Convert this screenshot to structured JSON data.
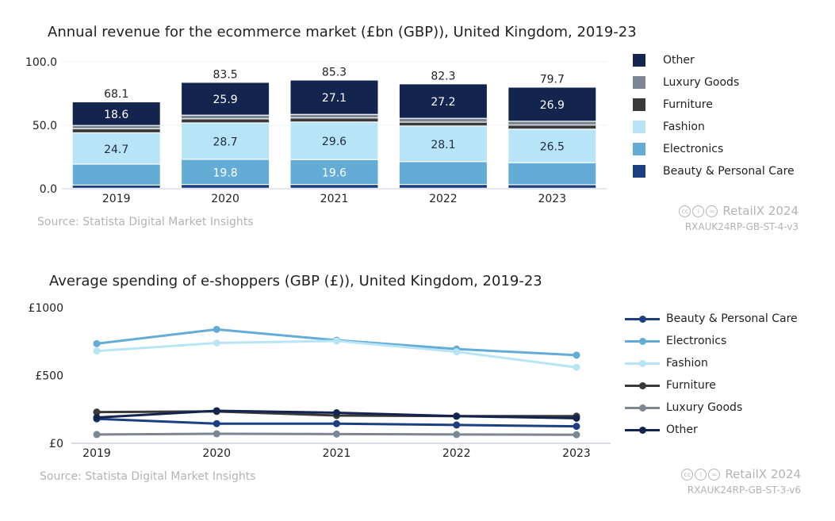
{
  "colors": {
    "Other": "#13244f",
    "Luxury Goods": "#7b8894",
    "Furniture": "#3a3a3a",
    "Fashion": "#b8e4f8",
    "Electronics": "#62acd6",
    "Beauty & Personal Care": "#1c3f82"
  },
  "revenue_panel": {
    "title": "Annual revenue for the ecommerce market (£bn (GBP)), United Kingdom, 2019-23",
    "source": "Source: Statista Digital Market Insights",
    "brand": "RetailX 2024",
    "code": "RXAUK24RP-GB-ST-4-v3"
  },
  "spending_panel": {
    "title": "Average spending of e-shoppers (GBP (£)), United Kingdom, 2019-23",
    "source": "Source: Statista Digital Market Insights",
    "brand": "RetailX 2024",
    "code": "RXAUK24RP-GB-ST-3-v6"
  },
  "chart_data": [
    {
      "type": "bar",
      "stacked": true,
      "title": "Annual revenue for the ecommerce market (£bn (GBP)), United Kingdom, 2019-23",
      "categories": [
        "2019",
        "2020",
        "2021",
        "2022",
        "2023"
      ],
      "ylim": [
        0,
        100
      ],
      "yticks": [
        "0.0",
        "50.0",
        "100.0"
      ],
      "totals": [
        "68.1",
        "83.5",
        "85.3",
        "82.3",
        "79.7"
      ],
      "grid": false,
      "legend_position": "right",
      "series": [
        {
          "name": "Beauty & Personal Care",
          "values": [
            2.5,
            3.0,
            3.0,
            3.0,
            2.8
          ],
          "labels": [
            "",
            "",
            "",
            "",
            ""
          ]
        },
        {
          "name": "Electronics",
          "values": [
            16.5,
            19.8,
            19.6,
            18.0,
            17.3
          ],
          "labels": [
            "",
            "19.8",
            "19.6",
            "",
            ""
          ]
        },
        {
          "name": "Fashion",
          "values": [
            24.7,
            28.7,
            29.6,
            28.1,
            26.5
          ],
          "labels": [
            "24.7",
            "28.7",
            "29.6",
            "28.1",
            "26.5"
          ]
        },
        {
          "name": "Furniture",
          "values": [
            3.2,
            3.2,
            3.2,
            3.0,
            3.2
          ],
          "labels": [
            "",
            "",
            "",
            "",
            ""
          ]
        },
        {
          "name": "Luxury Goods",
          "values": [
            2.6,
            2.9,
            2.8,
            3.0,
            3.0
          ],
          "labels": [
            "",
            "",
            "",
            "",
            ""
          ]
        },
        {
          "name": "Other",
          "values": [
            18.6,
            25.9,
            27.1,
            27.2,
            26.9
          ],
          "labels": [
            "18.6",
            "25.9",
            "27.1",
            "27.2",
            "26.9"
          ]
        }
      ],
      "legend_order": [
        "Other",
        "Luxury Goods",
        "Furniture",
        "Fashion",
        "Electronics",
        "Beauty & Personal Care"
      ]
    },
    {
      "type": "line",
      "title": "Average spending of e-shoppers (GBP (£)), United Kingdom, 2019-23",
      "x": [
        "2019",
        "2020",
        "2021",
        "2022",
        "2023"
      ],
      "ylim": [
        0,
        1000
      ],
      "yticks": [
        "£0",
        "£500",
        "£1000"
      ],
      "grid": false,
      "legend_position": "right",
      "series": [
        {
          "name": "Beauty & Personal Care",
          "values": [
            180,
            145,
            145,
            135,
            125
          ]
        },
        {
          "name": "Electronics",
          "values": [
            735,
            840,
            760,
            695,
            650
          ]
        },
        {
          "name": "Fashion",
          "values": [
            680,
            740,
            755,
            675,
            560
          ]
        },
        {
          "name": "Furniture",
          "values": [
            230,
            235,
            205,
            200,
            200
          ]
        },
        {
          "name": "Luxury Goods",
          "values": [
            65,
            70,
            68,
            65,
            63
          ]
        },
        {
          "name": "Other",
          "values": [
            190,
            240,
            225,
            200,
            185
          ]
        }
      ]
    }
  ]
}
